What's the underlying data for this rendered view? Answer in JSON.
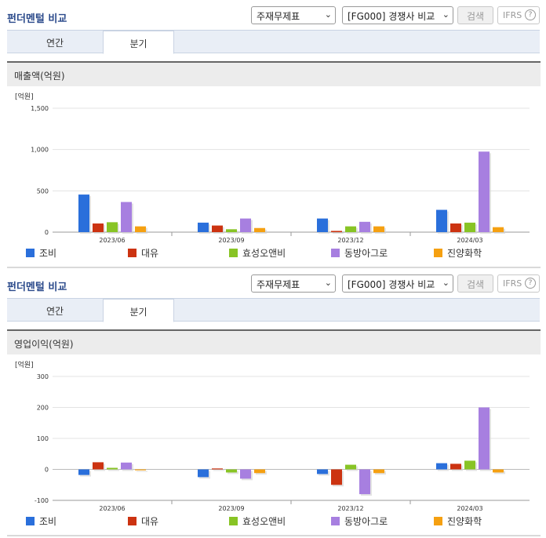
{
  "panels": [
    {
      "title": "펀더멘털 비교",
      "select_statement": "주재무제표",
      "select_compare": "[FG000] 경쟁사 비교",
      "search_label": "검색",
      "ifrs_label": "IFRS",
      "tabs": [
        {
          "label": "연간"
        },
        {
          "label": "분기"
        }
      ],
      "active_tab": "분기",
      "chart_header": "매출액(억원)"
    },
    {
      "title": "펀더멘털 비교",
      "select_statement": "주재무제표",
      "select_compare": "[FG000] 경쟁사 비교",
      "search_label": "검색",
      "ifrs_label": "IFRS",
      "tabs": [
        {
          "label": "연간"
        },
        {
          "label": "분기"
        }
      ],
      "active_tab": "분기",
      "chart_header": "영업이익(억원)"
    }
  ],
  "colors": {
    "조비": "#2a6fdb",
    "대유": "#cc3311",
    "효성오앤비": "#88c425",
    "동방아그로": "#a77fe0",
    "진양화학": "#f5a011"
  },
  "chart_data": [
    {
      "type": "bar",
      "title": "매출액(억원)",
      "unit": "[억원]",
      "categories": [
        "2023/06",
        "2023/09",
        "2023/12",
        "2024/03"
      ],
      "ylim": [
        0,
        1500
      ],
      "yticks": [
        "0",
        "500",
        "1,000",
        "1,500"
      ],
      "ytick_values": [
        0,
        500,
        1000,
        1500
      ],
      "grid": true,
      "legend": "bottom",
      "series": [
        {
          "name": "조비",
          "values": [
            455,
            115,
            165,
            270
          ]
        },
        {
          "name": "대유",
          "values": [
            105,
            80,
            15,
            105
          ]
        },
        {
          "name": "효성오앤비",
          "values": [
            120,
            35,
            70,
            115
          ]
        },
        {
          "name": "동방아그로",
          "values": [
            365,
            165,
            125,
            975
          ]
        },
        {
          "name": "진양화학",
          "values": [
            70,
            50,
            70,
            60
          ]
        }
      ]
    },
    {
      "type": "bar",
      "title": "영업이익(억원)",
      "unit": "[억원]",
      "categories": [
        "2023/06",
        "2023/09",
        "2023/12",
        "2024/03"
      ],
      "ylim": [
        -100,
        300
      ],
      "yticks": [
        "-100",
        "0",
        "100",
        "200",
        "300"
      ],
      "ytick_values": [
        -100,
        0,
        100,
        200,
        300
      ],
      "grid": true,
      "legend": "bottom",
      "series": [
        {
          "name": "조비",
          "values": [
            -18,
            -25,
            -15,
            20
          ]
        },
        {
          "name": "대유",
          "values": [
            23,
            3,
            -50,
            18
          ]
        },
        {
          "name": "효성오앤비",
          "values": [
            5,
            -10,
            15,
            28
          ]
        },
        {
          "name": "동방아그로",
          "values": [
            22,
            -30,
            -80,
            200
          ]
        },
        {
          "name": "진양화학",
          "values": [
            -3,
            -12,
            -12,
            -10
          ]
        }
      ]
    }
  ]
}
